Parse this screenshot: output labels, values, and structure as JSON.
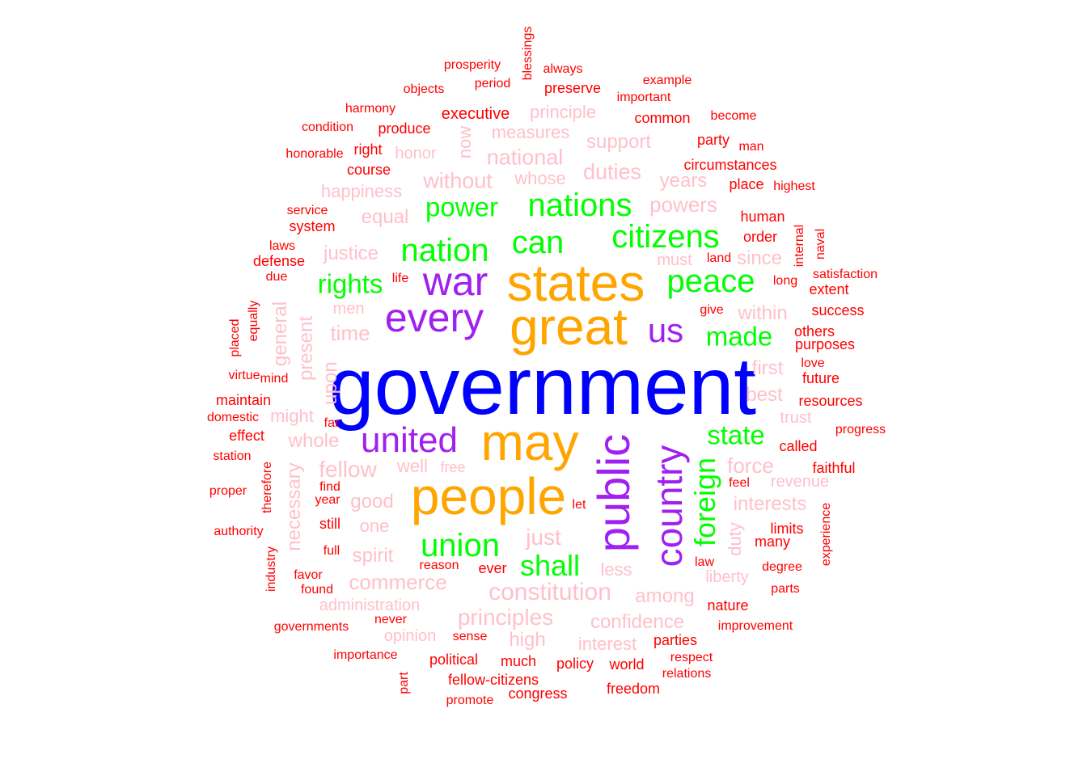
{
  "colors": {
    "tier1": "#0000ff",
    "tier2": "#ffa500",
    "tier3": "#a020f0",
    "tier4": "#00ff00",
    "tier5": "#ffc0cb",
    "tier6": "#ff0000"
  },
  "words": [
    {
      "text": "government",
      "tier": 1
    },
    {
      "text": "states",
      "tier": 2
    },
    {
      "text": "great",
      "tier": 2
    },
    {
      "text": "may",
      "tier": 2
    },
    {
      "text": "people",
      "tier": 2
    },
    {
      "text": "every",
      "tier": 3
    },
    {
      "text": "war",
      "tier": 3
    },
    {
      "text": "us",
      "tier": 3
    },
    {
      "text": "united",
      "tier": 3
    },
    {
      "text": "public",
      "tier": 3
    },
    {
      "text": "country",
      "tier": 3
    },
    {
      "text": "citizens",
      "tier": 4
    },
    {
      "text": "nations",
      "tier": 4
    },
    {
      "text": "can",
      "tier": 4
    },
    {
      "text": "nation",
      "tier": 4
    },
    {
      "text": "peace",
      "tier": 4
    },
    {
      "text": "power",
      "tier": 4
    },
    {
      "text": "rights",
      "tier": 4
    },
    {
      "text": "made",
      "tier": 4
    },
    {
      "text": "state",
      "tier": 4
    },
    {
      "text": "foreign",
      "tier": 4
    },
    {
      "text": "union",
      "tier": 4
    },
    {
      "text": "shall",
      "tier": 4
    },
    {
      "text": "principle",
      "tier": 5
    },
    {
      "text": "measures",
      "tier": 5
    },
    {
      "text": "now",
      "tier": 5
    },
    {
      "text": "honor",
      "tier": 5
    },
    {
      "text": "national",
      "tier": 5
    },
    {
      "text": "support",
      "tier": 5
    },
    {
      "text": "whose",
      "tier": 5
    },
    {
      "text": "without",
      "tier": 5
    },
    {
      "text": "duties",
      "tier": 5
    },
    {
      "text": "years",
      "tier": 5
    },
    {
      "text": "happiness",
      "tier": 5
    },
    {
      "text": "powers",
      "tier": 5
    },
    {
      "text": "equal",
      "tier": 5
    },
    {
      "text": "justice",
      "tier": 5
    },
    {
      "text": "must",
      "tier": 5
    },
    {
      "text": "since",
      "tier": 5
    },
    {
      "text": "men",
      "tier": 5
    },
    {
      "text": "time",
      "tier": 5
    },
    {
      "text": "general",
      "tier": 5
    },
    {
      "text": "present",
      "tier": 5
    },
    {
      "text": "upon",
      "tier": 5
    },
    {
      "text": "within",
      "tier": 5
    },
    {
      "text": "first",
      "tier": 5
    },
    {
      "text": "best",
      "tier": 5
    },
    {
      "text": "might",
      "tier": 5
    },
    {
      "text": "trust",
      "tier": 5
    },
    {
      "text": "whole",
      "tier": 5
    },
    {
      "text": "well",
      "tier": 5
    },
    {
      "text": "free",
      "tier": 5
    },
    {
      "text": "fellow",
      "tier": 5
    },
    {
      "text": "force",
      "tier": 5
    },
    {
      "text": "revenue",
      "tier": 5
    },
    {
      "text": "necessary",
      "tier": 5
    },
    {
      "text": "good",
      "tier": 5
    },
    {
      "text": "interests",
      "tier": 5
    },
    {
      "text": "one",
      "tier": 5
    },
    {
      "text": "just",
      "tier": 5
    },
    {
      "text": "duty",
      "tier": 5
    },
    {
      "text": "spirit",
      "tier": 5
    },
    {
      "text": "less",
      "tier": 5
    },
    {
      "text": "liberty",
      "tier": 5
    },
    {
      "text": "commerce",
      "tier": 5
    },
    {
      "text": "constitution",
      "tier": 5
    },
    {
      "text": "among",
      "tier": 5
    },
    {
      "text": "administration",
      "tier": 5
    },
    {
      "text": "principles",
      "tier": 5
    },
    {
      "text": "confidence",
      "tier": 5
    },
    {
      "text": "opinion",
      "tier": 5
    },
    {
      "text": "high",
      "tier": 5
    },
    {
      "text": "interest",
      "tier": 5
    },
    {
      "text": "blessings",
      "tier": 6
    },
    {
      "text": "prosperity",
      "tier": 6
    },
    {
      "text": "always",
      "tier": 6
    },
    {
      "text": "objects",
      "tier": 6
    },
    {
      "text": "period",
      "tier": 6
    },
    {
      "text": "preserve",
      "tier": 6
    },
    {
      "text": "example",
      "tier": 6
    },
    {
      "text": "important",
      "tier": 6
    },
    {
      "text": "harmony",
      "tier": 6
    },
    {
      "text": "executive",
      "tier": 6
    },
    {
      "text": "common",
      "tier": 6
    },
    {
      "text": "become",
      "tier": 6
    },
    {
      "text": "condition",
      "tier": 6
    },
    {
      "text": "produce",
      "tier": 6
    },
    {
      "text": "party",
      "tier": 6
    },
    {
      "text": "man",
      "tier": 6
    },
    {
      "text": "honorable",
      "tier": 6
    },
    {
      "text": "right",
      "tier": 6
    },
    {
      "text": "course",
      "tier": 6
    },
    {
      "text": "circumstances",
      "tier": 6
    },
    {
      "text": "place",
      "tier": 6
    },
    {
      "text": "highest",
      "tier": 6
    },
    {
      "text": "service",
      "tier": 6
    },
    {
      "text": "system",
      "tier": 6
    },
    {
      "text": "human",
      "tier": 6
    },
    {
      "text": "order",
      "tier": 6
    },
    {
      "text": "internal",
      "tier": 6
    },
    {
      "text": "naval",
      "tier": 6
    },
    {
      "text": "laws",
      "tier": 6
    },
    {
      "text": "defense",
      "tier": 6
    },
    {
      "text": "land",
      "tier": 6
    },
    {
      "text": "satisfaction",
      "tier": 6
    },
    {
      "text": "due",
      "tier": 6
    },
    {
      "text": "life",
      "tier": 6
    },
    {
      "text": "long",
      "tier": 6
    },
    {
      "text": "extent",
      "tier": 6
    },
    {
      "text": "placed",
      "tier": 6
    },
    {
      "text": "equally",
      "tier": 6
    },
    {
      "text": "give",
      "tier": 6
    },
    {
      "text": "success",
      "tier": 6
    },
    {
      "text": "others",
      "tier": 6
    },
    {
      "text": "purposes",
      "tier": 6
    },
    {
      "text": "virtue",
      "tier": 6
    },
    {
      "text": "mind",
      "tier": 6
    },
    {
      "text": "love",
      "tier": 6
    },
    {
      "text": "future",
      "tier": 6
    },
    {
      "text": "maintain",
      "tier": 6
    },
    {
      "text": "resources",
      "tier": 6
    },
    {
      "text": "domestic",
      "tier": 6
    },
    {
      "text": "far",
      "tier": 6
    },
    {
      "text": "progress",
      "tier": 6
    },
    {
      "text": "effect",
      "tier": 6
    },
    {
      "text": "called",
      "tier": 6
    },
    {
      "text": "station",
      "tier": 6
    },
    {
      "text": "therefore",
      "tier": 6
    },
    {
      "text": "faithful",
      "tier": 6
    },
    {
      "text": "feel",
      "tier": 6
    },
    {
      "text": "find",
      "tier": 6
    },
    {
      "text": "proper",
      "tier": 6
    },
    {
      "text": "year",
      "tier": 6
    },
    {
      "text": "let",
      "tier": 6
    },
    {
      "text": "experience",
      "tier": 6
    },
    {
      "text": "still",
      "tier": 6
    },
    {
      "text": "authority",
      "tier": 6
    },
    {
      "text": "limits",
      "tier": 6
    },
    {
      "text": "many",
      "tier": 6
    },
    {
      "text": "full",
      "tier": 6
    },
    {
      "text": "industry",
      "tier": 6
    },
    {
      "text": "law",
      "tier": 6
    },
    {
      "text": "reason",
      "tier": 6
    },
    {
      "text": "ever",
      "tier": 6
    },
    {
      "text": "degree",
      "tier": 6
    },
    {
      "text": "favor",
      "tier": 6
    },
    {
      "text": "found",
      "tier": 6
    },
    {
      "text": "parts",
      "tier": 6
    },
    {
      "text": "nature",
      "tier": 6
    },
    {
      "text": "never",
      "tier": 6
    },
    {
      "text": "governments",
      "tier": 6
    },
    {
      "text": "improvement",
      "tier": 6
    },
    {
      "text": "sense",
      "tier": 6
    },
    {
      "text": "parties",
      "tier": 6
    },
    {
      "text": "importance",
      "tier": 6
    },
    {
      "text": "respect",
      "tier": 6
    },
    {
      "text": "political",
      "tier": 6
    },
    {
      "text": "much",
      "tier": 6
    },
    {
      "text": "policy",
      "tier": 6
    },
    {
      "text": "world",
      "tier": 6
    },
    {
      "text": "relations",
      "tier": 6
    },
    {
      "text": "part",
      "tier": 6
    },
    {
      "text": "fellow-citizens",
      "tier": 6
    },
    {
      "text": "freedom",
      "tier": 6
    },
    {
      "text": "congress",
      "tier": 6
    },
    {
      "text": "promote",
      "tier": 6
    }
  ]
}
